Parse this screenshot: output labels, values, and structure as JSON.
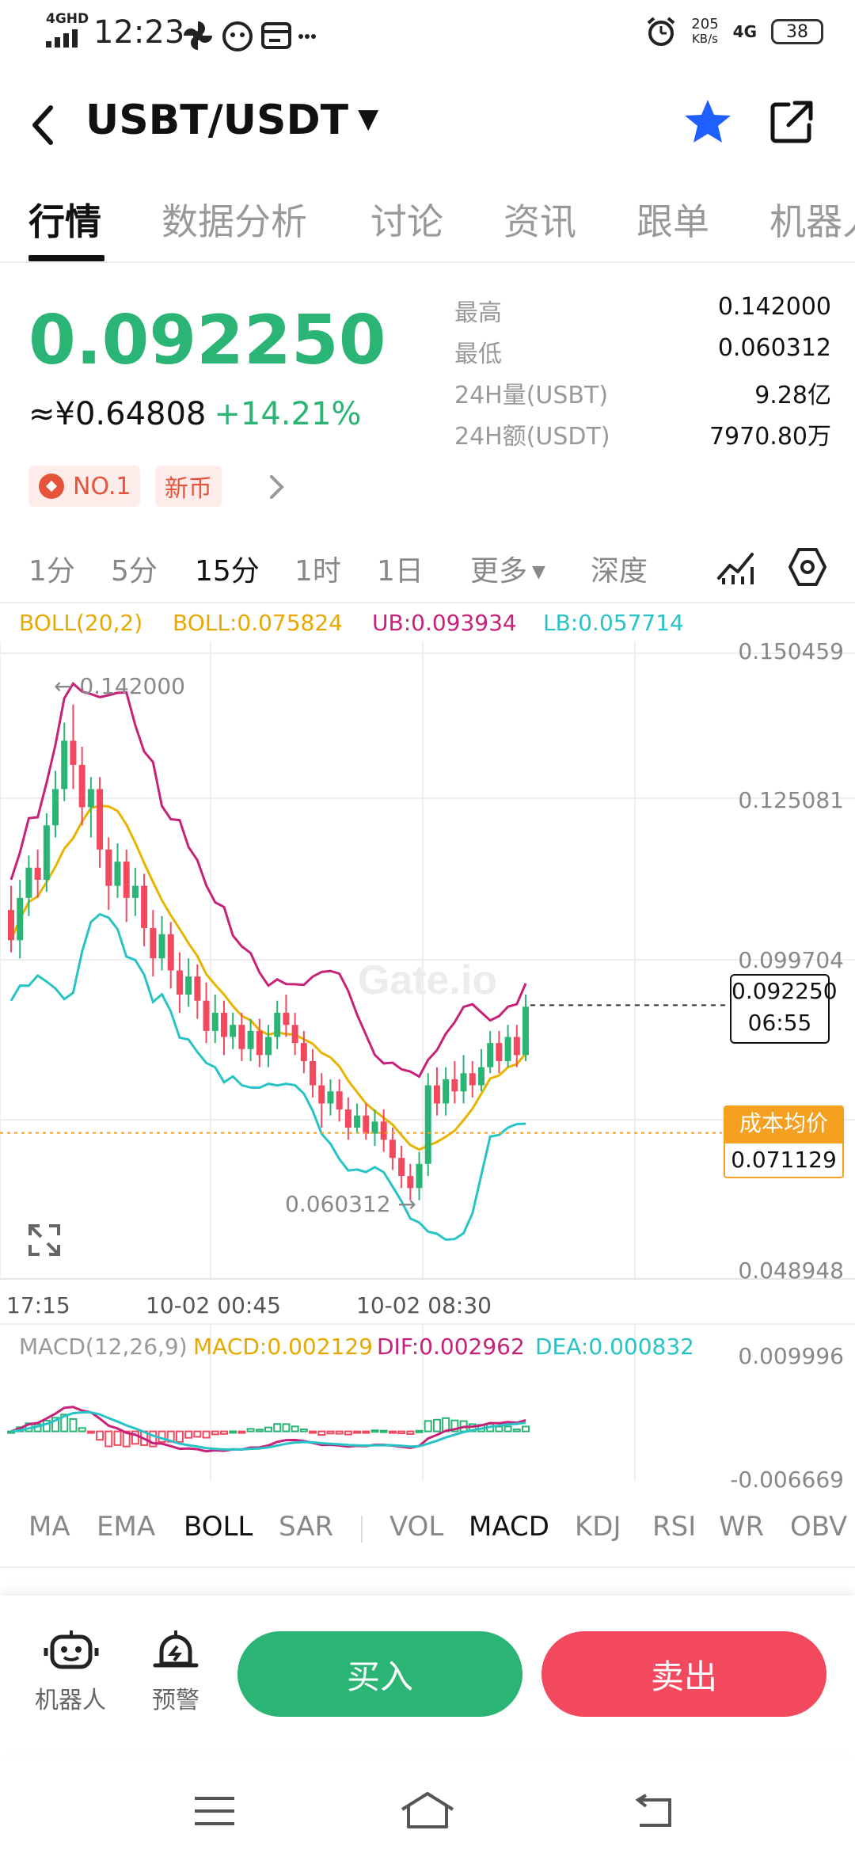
{
  "status_bar": {
    "network": "4GHD",
    "time": "12:23",
    "speed_value": "205",
    "speed_unit": "KB/s",
    "signal": "4G",
    "battery": "38"
  },
  "header": {
    "pair": "USBT/USDT",
    "dropdown_icon": "caret-down-icon",
    "favorite_icon": "star-icon",
    "share_icon": "share-icon",
    "favorite_color": "#1f5eff"
  },
  "tabs": [
    "行情",
    "数据分析",
    "讨论",
    "资讯",
    "跟单",
    "机器人"
  ],
  "price": {
    "last": "0.092250",
    "cny": "≈¥0.64808",
    "change": "+14.21%",
    "up_color": "#2ab574",
    "down_color": "#f2495f"
  },
  "stats": [
    {
      "label": "最高",
      "value": "0.142000"
    },
    {
      "label": "最低",
      "value": "0.060312"
    },
    {
      "label": "24H量(USBT)",
      "value": "9.28亿"
    },
    {
      "label": "24H额(USDT)",
      "value": "7970.80万"
    }
  ],
  "badges": [
    "NO.1",
    "新币"
  ],
  "timeframes": [
    "1分",
    "5分",
    "15分",
    "1时",
    "1日",
    "更多",
    "深度"
  ],
  "active_timeframe": "15分",
  "boll_legend": {
    "name": "BOLL(20,2)",
    "mid": "BOLL:0.075824",
    "ub": "UB:0.093934",
    "lb": "LB:0.057714"
  },
  "macd_legend": {
    "name": "MACD(12,26,9)",
    "macd": "MACD:0.002129",
    "dif": "DIF:0.002962",
    "dea": "DEA:0.000832"
  },
  "chart_data": {
    "type": "candlestick",
    "y_ticks": [
      "0.150459",
      "0.125081",
      "0.099704",
      "0.048948"
    ],
    "ylim": [
      0.048948,
      0.150459
    ],
    "x_ticks": [
      "17:15",
      "10-02 00:45",
      "10-02 08:30"
    ],
    "high_annotation": "← 0.142000",
    "low_annotation": "0.060312 →",
    "last_price_label": "0.092250",
    "countdown": "06:55",
    "cost_label": "成本均价",
    "cost_value": "0.071129",
    "watermark": "Gate.io",
    "candles": [
      [
        0.108,
        0.103,
        0.112,
        0.101
      ],
      [
        0.103,
        0.11,
        0.113,
        0.1
      ],
      [
        0.11,
        0.115,
        0.117,
        0.107
      ],
      [
        0.115,
        0.113,
        0.118,
        0.11
      ],
      [
        0.113,
        0.122,
        0.124,
        0.111
      ],
      [
        0.122,
        0.128,
        0.131,
        0.12
      ],
      [
        0.128,
        0.136,
        0.139,
        0.126
      ],
      [
        0.136,
        0.132,
        0.142,
        0.128
      ],
      [
        0.132,
        0.125,
        0.135,
        0.122
      ],
      [
        0.125,
        0.128,
        0.13,
        0.12
      ],
      [
        0.128,
        0.118,
        0.13,
        0.115
      ],
      [
        0.118,
        0.112,
        0.12,
        0.108
      ],
      [
        0.112,
        0.116,
        0.119,
        0.11
      ],
      [
        0.116,
        0.11,
        0.118,
        0.106
      ],
      [
        0.11,
        0.112,
        0.115,
        0.107
      ],
      [
        0.112,
        0.105,
        0.114,
        0.102
      ],
      [
        0.105,
        0.1,
        0.108,
        0.097
      ],
      [
        0.1,
        0.104,
        0.107,
        0.098
      ],
      [
        0.104,
        0.098,
        0.106,
        0.095
      ],
      [
        0.098,
        0.094,
        0.101,
        0.091
      ],
      [
        0.094,
        0.097,
        0.1,
        0.092
      ],
      [
        0.097,
        0.093,
        0.099,
        0.09
      ],
      [
        0.093,
        0.088,
        0.096,
        0.086
      ],
      [
        0.088,
        0.091,
        0.094,
        0.086
      ],
      [
        0.091,
        0.087,
        0.093,
        0.084
      ],
      [
        0.087,
        0.089,
        0.091,
        0.085
      ],
      [
        0.089,
        0.085,
        0.091,
        0.083
      ],
      [
        0.085,
        0.088,
        0.09,
        0.083
      ],
      [
        0.088,
        0.084,
        0.09,
        0.082
      ],
      [
        0.084,
        0.087,
        0.089,
        0.082
      ],
      [
        0.087,
        0.091,
        0.093,
        0.085
      ],
      [
        0.091,
        0.089,
        0.094,
        0.087
      ],
      [
        0.089,
        0.086,
        0.091,
        0.084
      ],
      [
        0.086,
        0.083,
        0.088,
        0.081
      ],
      [
        0.083,
        0.079,
        0.085,
        0.077
      ],
      [
        0.079,
        0.076,
        0.081,
        0.072
      ],
      [
        0.076,
        0.078,
        0.08,
        0.074
      ],
      [
        0.078,
        0.075,
        0.08,
        0.073
      ],
      [
        0.075,
        0.072,
        0.077,
        0.07
      ],
      [
        0.072,
        0.074,
        0.076,
        0.071
      ],
      [
        0.074,
        0.071,
        0.076,
        0.07
      ],
      [
        0.071,
        0.073,
        0.075,
        0.069
      ],
      [
        0.073,
        0.07,
        0.075,
        0.068
      ],
      [
        0.07,
        0.067,
        0.072,
        0.065
      ],
      [
        0.067,
        0.064,
        0.069,
        0.062
      ],
      [
        0.064,
        0.062,
        0.066,
        0.06
      ],
      [
        0.062,
        0.066,
        0.068,
        0.06
      ],
      [
        0.066,
        0.079,
        0.081,
        0.064
      ],
      [
        0.079,
        0.076,
        0.082,
        0.074
      ],
      [
        0.076,
        0.08,
        0.082,
        0.074
      ],
      [
        0.08,
        0.078,
        0.083,
        0.076
      ],
      [
        0.078,
        0.081,
        0.084,
        0.076
      ],
      [
        0.081,
        0.079,
        0.083,
        0.077
      ],
      [
        0.079,
        0.082,
        0.085,
        0.078
      ],
      [
        0.082,
        0.086,
        0.088,
        0.081
      ],
      [
        0.086,
        0.083,
        0.088,
        0.081
      ],
      [
        0.083,
        0.087,
        0.089,
        0.082
      ],
      [
        0.087,
        0.084,
        0.089,
        0.082
      ],
      [
        0.084,
        0.092,
        0.094,
        0.083
      ]
    ],
    "macd_ticks": [
      "0.009996",
      "-0.006669"
    ]
  },
  "indicators": [
    "MA",
    "EMA",
    "BOLL",
    "SAR",
    "VOL",
    "MACD",
    "KDJ",
    "RSI",
    "WR",
    "OBV"
  ],
  "active_indicators": [
    "BOLL",
    "MACD"
  ],
  "bottom_bar": {
    "robot_label": "机器人",
    "alert_label": "预警",
    "buy_label": "买入",
    "sell_label": "卖出"
  }
}
